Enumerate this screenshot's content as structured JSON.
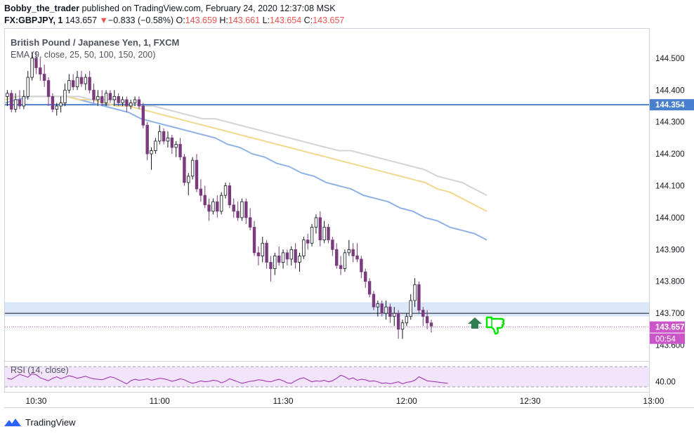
{
  "header": {
    "publisher": "Bobby_the_trader",
    "published_text": "published on TradingView.com, February 24, 2020 12:37:08 MSK",
    "symbol_title": "FX:GBPJPY, 1",
    "last_price": "143.657",
    "change_arrow": "▼",
    "change_text": "−0.833 (−0.58%)",
    "o_label": "O:",
    "o_value": "143.659",
    "h_label": "H:",
    "h_value": "143.661",
    "l_label": "L:",
    "l_value": "143.654",
    "c_label": "C:",
    "c_value": "143.657"
  },
  "legend": {
    "instrument": "British Pound / Japanese Yen, 1, FXCM",
    "indicator": "EMA (9, close, 25, 50, 100, 150, 200)",
    "rsi": "RSI (14, close)"
  },
  "price_axis": {
    "ticks": [
      "144.500",
      "144.400",
      "144.300",
      "144.200",
      "144.100",
      "144.000",
      "143.900",
      "143.800",
      "143.700",
      "143.600"
    ],
    "h_line_label": "144.354",
    "last_label": "143.657",
    "countdown": "00:54"
  },
  "rsi_axis": {
    "tick": "40.00"
  },
  "time_axis": {
    "ticks": [
      "10:30",
      "11:00",
      "11:30",
      "12:00",
      "12:30",
      "13:00"
    ]
  },
  "footer": {
    "brand": "TradingView"
  },
  "colors": {
    "up": "#131722",
    "down": "#7a3b7e",
    "ema_blue": "#8cb2e6",
    "ema_gold": "#f2d88e",
    "ema_gray": "#d4d4d4",
    "hline": "#4a7fcf",
    "zone": "#dbe8fa",
    "last": "#cb55c8",
    "rsi": "#9c27b0",
    "rsi_band": "#f1e4fb",
    "thumb": "#00e600",
    "arrow": "#2e7d4f"
  },
  "chart_data": {
    "type": "candlestick",
    "ylim": [
      143.555,
      144.59
    ],
    "x_ticks": [
      "10:30",
      "11:00",
      "11:30",
      "12:00",
      "12:30",
      "13:00"
    ],
    "first_bar_time": "10:23",
    "bar_minutes": 1,
    "ohlc": [
      [
        144.38,
        144.4,
        144.35,
        144.39
      ],
      [
        144.39,
        144.4,
        144.33,
        144.34
      ],
      [
        144.34,
        144.39,
        144.33,
        144.37
      ],
      [
        144.37,
        144.4,
        144.34,
        144.35
      ],
      [
        144.35,
        144.4,
        144.34,
        144.38
      ],
      [
        144.38,
        144.46,
        144.37,
        144.44
      ],
      [
        144.44,
        144.52,
        144.43,
        144.5
      ],
      [
        144.5,
        144.52,
        144.45,
        144.47
      ],
      [
        144.47,
        144.5,
        144.43,
        144.45
      ],
      [
        144.45,
        144.48,
        144.41,
        144.43
      ],
      [
        144.43,
        144.44,
        144.35,
        144.38
      ],
      [
        144.38,
        144.39,
        144.33,
        144.34
      ],
      [
        144.34,
        144.36,
        144.32,
        144.35
      ],
      [
        144.35,
        144.38,
        144.33,
        144.36
      ],
      [
        144.36,
        144.42,
        144.35,
        144.4
      ],
      [
        144.4,
        144.45,
        144.39,
        144.43
      ],
      [
        144.43,
        144.45,
        144.4,
        144.41
      ],
      [
        144.41,
        144.46,
        144.4,
        144.44
      ],
      [
        144.44,
        144.46,
        144.41,
        144.42
      ],
      [
        144.42,
        144.45,
        144.4,
        144.44
      ],
      [
        144.44,
        144.46,
        144.39,
        144.4
      ],
      [
        144.4,
        144.42,
        144.36,
        144.37
      ],
      [
        144.37,
        144.4,
        144.35,
        144.38
      ],
      [
        144.38,
        144.4,
        144.35,
        144.36
      ],
      [
        144.36,
        144.4,
        144.35,
        144.39
      ],
      [
        144.39,
        144.4,
        144.36,
        144.37
      ],
      [
        144.37,
        144.4,
        144.35,
        144.38
      ],
      [
        144.38,
        144.39,
        144.35,
        144.36
      ],
      [
        144.36,
        144.38,
        144.35,
        144.37
      ],
      [
        144.37,
        144.38,
        144.33,
        144.35
      ],
      [
        144.35,
        144.37,
        144.34,
        144.36
      ],
      [
        144.36,
        144.38,
        144.35,
        144.37
      ],
      [
        144.37,
        144.38,
        144.34,
        144.35
      ],
      [
        144.35,
        144.36,
        144.28,
        144.29
      ],
      [
        144.29,
        144.3,
        144.18,
        144.2
      ],
      [
        144.2,
        144.22,
        144.15,
        144.21
      ],
      [
        144.21,
        144.25,
        144.2,
        144.24
      ],
      [
        144.24,
        144.29,
        144.23,
        144.27
      ],
      [
        144.27,
        144.28,
        144.23,
        144.24
      ],
      [
        144.24,
        144.27,
        144.22,
        144.25
      ],
      [
        144.25,
        144.26,
        144.2,
        144.22
      ],
      [
        144.22,
        144.24,
        144.19,
        144.23
      ],
      [
        144.23,
        144.25,
        144.18,
        144.19
      ],
      [
        144.19,
        144.2,
        144.1,
        144.11
      ],
      [
        144.11,
        144.14,
        144.07,
        144.13
      ],
      [
        144.13,
        144.19,
        144.12,
        144.18
      ],
      [
        144.18,
        144.2,
        144.08,
        144.09
      ],
      [
        144.09,
        144.12,
        144.05,
        144.07
      ],
      [
        144.07,
        144.1,
        144.03,
        144.04
      ],
      [
        144.04,
        144.06,
        143.99,
        144.02
      ],
      [
        144.02,
        144.06,
        144.01,
        144.05
      ],
      [
        144.05,
        144.07,
        144.0,
        144.02
      ],
      [
        144.02,
        144.08,
        144.01,
        144.07
      ],
      [
        144.07,
        144.11,
        144.06,
        144.1
      ],
      [
        144.1,
        144.11,
        144.03,
        144.04
      ],
      [
        144.04,
        144.06,
        144.0,
        144.02
      ],
      [
        144.02,
        144.05,
        143.99,
        144.0
      ],
      [
        144.0,
        144.06,
        143.99,
        144.05
      ],
      [
        144.05,
        144.06,
        143.98,
        144.0
      ],
      [
        144.0,
        144.03,
        143.96,
        143.97
      ],
      [
        143.97,
        143.99,
        143.88,
        143.89
      ],
      [
        143.89,
        143.91,
        143.85,
        143.88
      ],
      [
        143.88,
        143.94,
        143.86,
        143.92
      ],
      [
        143.92,
        143.93,
        143.84,
        143.86
      ],
      [
        143.86,
        143.88,
        143.8,
        143.84
      ],
      [
        143.84,
        143.89,
        143.82,
        143.88
      ],
      [
        143.88,
        143.91,
        143.85,
        143.86
      ],
      [
        143.86,
        143.9,
        143.84,
        143.89
      ],
      [
        143.89,
        143.9,
        143.85,
        143.87
      ],
      [
        143.87,
        143.91,
        143.85,
        143.9
      ],
      [
        143.9,
        143.92,
        143.84,
        143.86
      ],
      [
        143.86,
        143.89,
        143.83,
        143.88
      ],
      [
        143.88,
        143.94,
        143.87,
        143.93
      ],
      [
        143.93,
        143.95,
        143.9,
        143.92
      ],
      [
        143.92,
        143.98,
        143.91,
        143.97
      ],
      [
        143.97,
        144.01,
        143.95,
        144.0
      ],
      [
        144.0,
        144.02,
        143.91,
        143.93
      ],
      [
        143.93,
        143.99,
        143.92,
        143.97
      ],
      [
        143.97,
        143.98,
        143.92,
        143.93
      ],
      [
        143.93,
        143.94,
        143.88,
        143.9
      ],
      [
        143.9,
        143.92,
        143.84,
        143.85
      ],
      [
        143.85,
        143.88,
        143.82,
        143.84
      ],
      [
        143.84,
        143.9,
        143.83,
        143.89
      ],
      [
        143.89,
        143.93,
        143.88,
        143.9
      ],
      [
        143.9,
        143.92,
        143.86,
        143.88
      ],
      [
        143.88,
        143.92,
        143.86,
        143.87
      ],
      [
        143.87,
        143.88,
        143.81,
        143.83
      ],
      [
        143.83,
        143.84,
        143.78,
        143.8
      ],
      [
        143.8,
        143.81,
        143.75,
        143.76
      ],
      [
        143.76,
        143.77,
        143.71,
        143.72
      ],
      [
        143.72,
        143.74,
        143.69,
        143.73
      ],
      [
        143.73,
        143.74,
        143.69,
        143.7
      ],
      [
        143.7,
        143.74,
        143.68,
        143.72
      ],
      [
        143.72,
        143.73,
        143.67,
        143.69
      ],
      [
        143.69,
        143.72,
        143.66,
        143.7
      ],
      [
        143.7,
        143.71,
        143.62,
        143.65
      ],
      [
        143.65,
        143.68,
        143.62,
        143.67
      ],
      [
        143.67,
        143.7,
        143.66,
        143.69
      ],
      [
        143.69,
        143.76,
        143.68,
        143.74
      ],
      [
        143.74,
        143.81,
        143.72,
        143.79
      ],
      [
        143.79,
        143.8,
        143.7,
        143.71
      ],
      [
        143.71,
        143.72,
        143.66,
        143.69
      ],
      [
        143.69,
        143.71,
        143.65,
        143.67
      ],
      [
        143.67,
        143.68,
        143.64,
        143.66
      ]
    ],
    "ema_series": [
      {
        "values": [
          144.36,
          144.37,
          144.38,
          144.38,
          144.38,
          144.38,
          144.37,
          144.36,
          144.35,
          144.34,
          144.33,
          144.31,
          144.3,
          144.29,
          144.28,
          144.27,
          144.26,
          144.25,
          144.23,
          144.22,
          144.2,
          144.19,
          144.17,
          144.16,
          144.14,
          144.13,
          144.11,
          144.1,
          144.09,
          144.07,
          144.06,
          144.05,
          144.03,
          144.02,
          144.0,
          143.99,
          143.97,
          143.96,
          143.95,
          143.93
        ]
      },
      {
        "values": [
          144.37,
          144.38,
          144.38,
          144.38,
          144.38,
          144.38,
          144.37,
          144.37,
          144.36,
          144.35,
          144.35,
          144.34,
          144.33,
          144.32,
          144.31,
          144.3,
          144.29,
          144.28,
          144.27,
          144.26,
          144.25,
          144.24,
          144.23,
          144.22,
          144.21,
          144.2,
          144.19,
          144.18,
          144.17,
          144.16,
          144.15,
          144.14,
          144.13,
          144.12,
          144.11,
          144.09,
          144.08,
          144.06,
          144.04,
          144.02
        ]
      },
      {
        "values": [
          144.38,
          144.38,
          144.38,
          144.38,
          144.38,
          144.38,
          144.38,
          144.37,
          144.37,
          144.37,
          144.36,
          144.35,
          144.35,
          144.34,
          144.33,
          144.32,
          144.31,
          144.31,
          144.3,
          144.29,
          144.28,
          144.27,
          144.26,
          144.25,
          144.24,
          144.23,
          144.22,
          144.21,
          144.21,
          144.2,
          144.19,
          144.18,
          144.17,
          144.16,
          144.15,
          144.13,
          144.12,
          144.11,
          144.09,
          144.07
        ]
      }
    ],
    "h_line": 144.354,
    "zone": [
      143.69,
      143.735
    ],
    "support_line": 143.7,
    "last_price": 143.657,
    "rsi": {
      "ylim": [
        20,
        80
      ],
      "band": [
        30,
        70
      ],
      "values": [
        47,
        45,
        50,
        55,
        52,
        49,
        56,
        54,
        48,
        45,
        42,
        47,
        50,
        46,
        49,
        52,
        50,
        47,
        49,
        51,
        48,
        46,
        45,
        44,
        47,
        50,
        48,
        44,
        40,
        36,
        42,
        45,
        43,
        44,
        46,
        43,
        45,
        47,
        46,
        44,
        41,
        43,
        46,
        44,
        40,
        37,
        39,
        42,
        40,
        41,
        43,
        42,
        38,
        41,
        46,
        43,
        40,
        37,
        39,
        41,
        42,
        44,
        43,
        41,
        40,
        43,
        45,
        42,
        38,
        37,
        42,
        46,
        48,
        44,
        40,
        42,
        41,
        43,
        40,
        42,
        47,
        53,
        50,
        45,
        48,
        43,
        45,
        44,
        41,
        42,
        40,
        37,
        38,
        36,
        38,
        40,
        36,
        39,
        40,
        43,
        50,
        46,
        42,
        41,
        40,
        39,
        38,
        37
      ]
    }
  }
}
